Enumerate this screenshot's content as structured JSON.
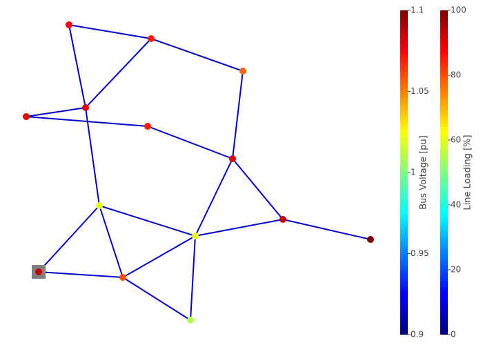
{
  "chart_data": {
    "type": "network",
    "bus_voltage": {
      "title": "Bus Voltage [pu]",
      "ylim": [
        0.9,
        1.1
      ],
      "yticks": [
        0.9,
        0.95,
        1,
        1.05,
        1.1
      ],
      "values": [
        1.075,
        1.07,
        1.055,
        1.08,
        1.08,
        1.07,
        1.08,
        1.02,
        1.02,
        1.085,
        1.1,
        1.085,
        1.06,
        1.01
      ]
    },
    "line_loading": {
      "title": "Line Loading [%]",
      "ylim": [
        0,
        100
      ],
      "yticks": [
        0,
        20,
        40,
        60,
        80,
        100
      ],
      "values": [
        8,
        8,
        8,
        8,
        8,
        8,
        8,
        8,
        8,
        8,
        8,
        8,
        8,
        8,
        8,
        8,
        8,
        8,
        8,
        8
      ]
    },
    "colormap": "jet"
  }
}
